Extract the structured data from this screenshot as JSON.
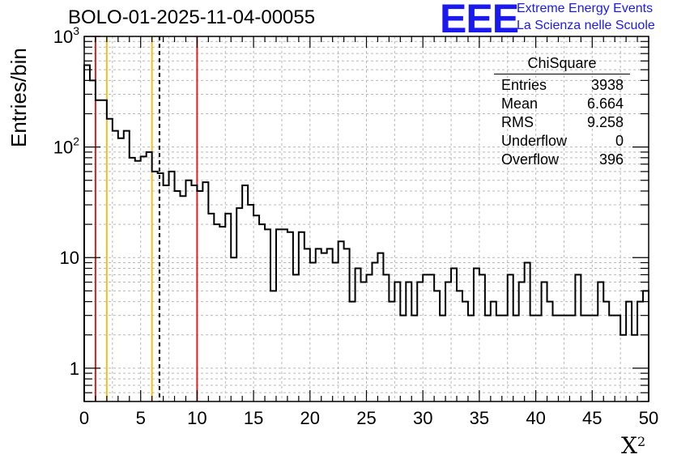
{
  "title": "BOLO-01-2025-11-04-00055",
  "logo": {
    "text": "EEE",
    "line1": "Extreme Energy Events",
    "line2": "La Scienza nelle Scuole",
    "color": "#1a1aee"
  },
  "stats_box": {
    "title": "ChiSquare",
    "rows": [
      {
        "label": "Entries",
        "value": "3938"
      },
      {
        "label": "Mean",
        "value": "6.664"
      },
      {
        "label": "RMS",
        "value": "9.258"
      },
      {
        "label": "Underflow",
        "value": "0"
      },
      {
        "label": "Overflow",
        "value": "396"
      }
    ]
  },
  "chart_data": {
    "type": "histogram",
    "title": "BOLO-01-2025-11-04-00055",
    "xlabel": "X",
    "xlabel_sup": "2",
    "ylabel": "Entries/bin",
    "xlim": [
      0,
      50
    ],
    "ylim": [
      0.5,
      1000
    ],
    "y_scale": "log",
    "grid": true,
    "bin_width": 0.5,
    "x_ticks": [
      0,
      5,
      10,
      15,
      20,
      25,
      30,
      35,
      40,
      45,
      50
    ],
    "x_tick_labels": [
      "0",
      "5",
      "10",
      "15",
      "20",
      "25",
      "30",
      "35",
      "40",
      "45",
      "50"
    ],
    "y_ticks": [
      {
        "value": 1,
        "base": "1",
        "exp": ""
      },
      {
        "value": 10,
        "base": "10",
        "exp": ""
      },
      {
        "value": 100,
        "base": "10",
        "exp": "2"
      },
      {
        "value": 1000,
        "base": "10",
        "exp": "3"
      }
    ],
    "counts": [
      550,
      400,
      265,
      265,
      180,
      140,
      120,
      140,
      80,
      75,
      82,
      90,
      60,
      58,
      45,
      60,
      40,
      36,
      50,
      45,
      40,
      48,
      25,
      20,
      19,
      25,
      10,
      28,
      45,
      30,
      24,
      20,
      18,
      5,
      18,
      18,
      17,
      7,
      17,
      12,
      9,
      12,
      11,
      12,
      9,
      14,
      12,
      4,
      8,
      6,
      7,
      9,
      11,
      7,
      4,
      6,
      3,
      6,
      3,
      6,
      7,
      7,
      5,
      3,
      6,
      8,
      5,
      4,
      3,
      8,
      7,
      3,
      4,
      3,
      3,
      7,
      3,
      6,
      9,
      3,
      3,
      6,
      4,
      3,
      3,
      3,
      3,
      7,
      3,
      3,
      3,
      6,
      4,
      3,
      3,
      2,
      4,
      2,
      4,
      5
    ],
    "vertical_lines": [
      {
        "x": 1.0,
        "color": "#dd2222",
        "style": "solid"
      },
      {
        "x": 2.0,
        "color": "#f0c020",
        "style": "solid"
      },
      {
        "x": 6.0,
        "color": "#f0c020",
        "style": "solid"
      },
      {
        "x": 6.664,
        "color": "#000000",
        "style": "dashed"
      },
      {
        "x": 10.0,
        "color": "#dd2222",
        "style": "solid"
      }
    ]
  }
}
